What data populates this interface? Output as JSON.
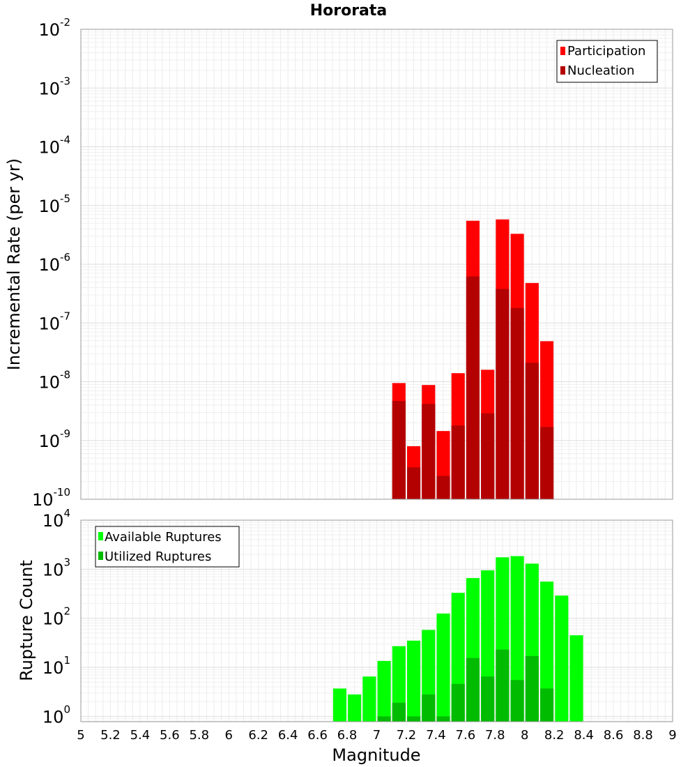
{
  "chart_data": {
    "title": "Hororata",
    "xlabel": "Magnitude",
    "x_ticks": [
      "5",
      "5.2",
      "5.4",
      "5.6",
      "5.8",
      "6",
      "6.2",
      "6.4",
      "6.6",
      "6.8",
      "7",
      "7.2",
      "7.4",
      "7.6",
      "7.8",
      "8",
      "8.2",
      "8.4",
      "8.6",
      "8.8",
      "9"
    ],
    "xlim": [
      5,
      9
    ],
    "panels": [
      {
        "type": "bar",
        "ylabel": "Incremental Rate (per yr)",
        "yscale": "log",
        "ylim": [
          1e-10,
          0.01
        ],
        "y_ticks": [
          {
            "base": "10",
            "exp": "-10"
          },
          {
            "base": "10",
            "exp": "-9"
          },
          {
            "base": "10",
            "exp": "-8"
          },
          {
            "base": "10",
            "exp": "-7"
          },
          {
            "base": "10",
            "exp": "-6"
          },
          {
            "base": "10",
            "exp": "-5"
          },
          {
            "base": "10",
            "exp": "-4"
          },
          {
            "base": "10",
            "exp": "-3"
          },
          {
            "base": "10",
            "exp": "-2"
          }
        ],
        "grid": true,
        "legend_position": "top-right",
        "x": [
          7.15,
          7.25,
          7.35,
          7.45,
          7.55,
          7.65,
          7.75,
          7.85,
          7.95,
          8.05,
          8.15
        ],
        "series": [
          {
            "name": "Participation",
            "color": "#ff0000",
            "values": [
              9.5e-09,
              8e-10,
              8.8e-09,
              1.45e-09,
              1.4e-08,
              5.5e-06,
              1.6e-08,
              5.8e-06,
              3.3e-06,
              4.8e-07,
              4.9e-08
            ]
          },
          {
            "name": "Nucleation",
            "color": "#b30000",
            "values": [
              4.7e-09,
              3.5e-10,
              4.2e-09,
              2.5e-10,
              1.8e-09,
              6.2e-07,
              2.9e-09,
              3.8e-07,
              1.8e-07,
              2.1e-08,
              1.7e-09
            ]
          }
        ]
      },
      {
        "type": "bar",
        "ylabel": "Rupture Count",
        "yscale": "log",
        "ylim": [
          0.78,
          10000
        ],
        "y_ticks": [
          {
            "base": "10",
            "exp": "0"
          },
          {
            "base": "10",
            "exp": "1"
          },
          {
            "base": "10",
            "exp": "2"
          },
          {
            "base": "10",
            "exp": "3"
          },
          {
            "base": "10",
            "exp": "4"
          }
        ],
        "grid": true,
        "legend_position": "top-left",
        "x": [
          6.75,
          6.85,
          6.95,
          7.05,
          7.15,
          7.25,
          7.35,
          7.45,
          7.55,
          7.65,
          7.75,
          7.85,
          7.95,
          8.05,
          8.15,
          8.25,
          8.35
        ],
        "series": [
          {
            "name": "Available Ruptures",
            "color": "#00ff00",
            "values": [
              3.7,
              2.8,
              6.5,
              13.5,
              27,
              35,
              58,
              125,
              330,
              660,
              950,
              1750,
              1850,
              1300,
              560,
              290,
              45
            ]
          },
          {
            "name": "Utilized Ruptures",
            "color": "#00bb00",
            "values": [
              null,
              null,
              null,
              1,
              1.9,
              1,
              2.8,
              1,
              4.6,
              15.5,
              6.5,
              23,
              5.5,
              17,
              3.7,
              null,
              null
            ]
          }
        ]
      }
    ]
  }
}
